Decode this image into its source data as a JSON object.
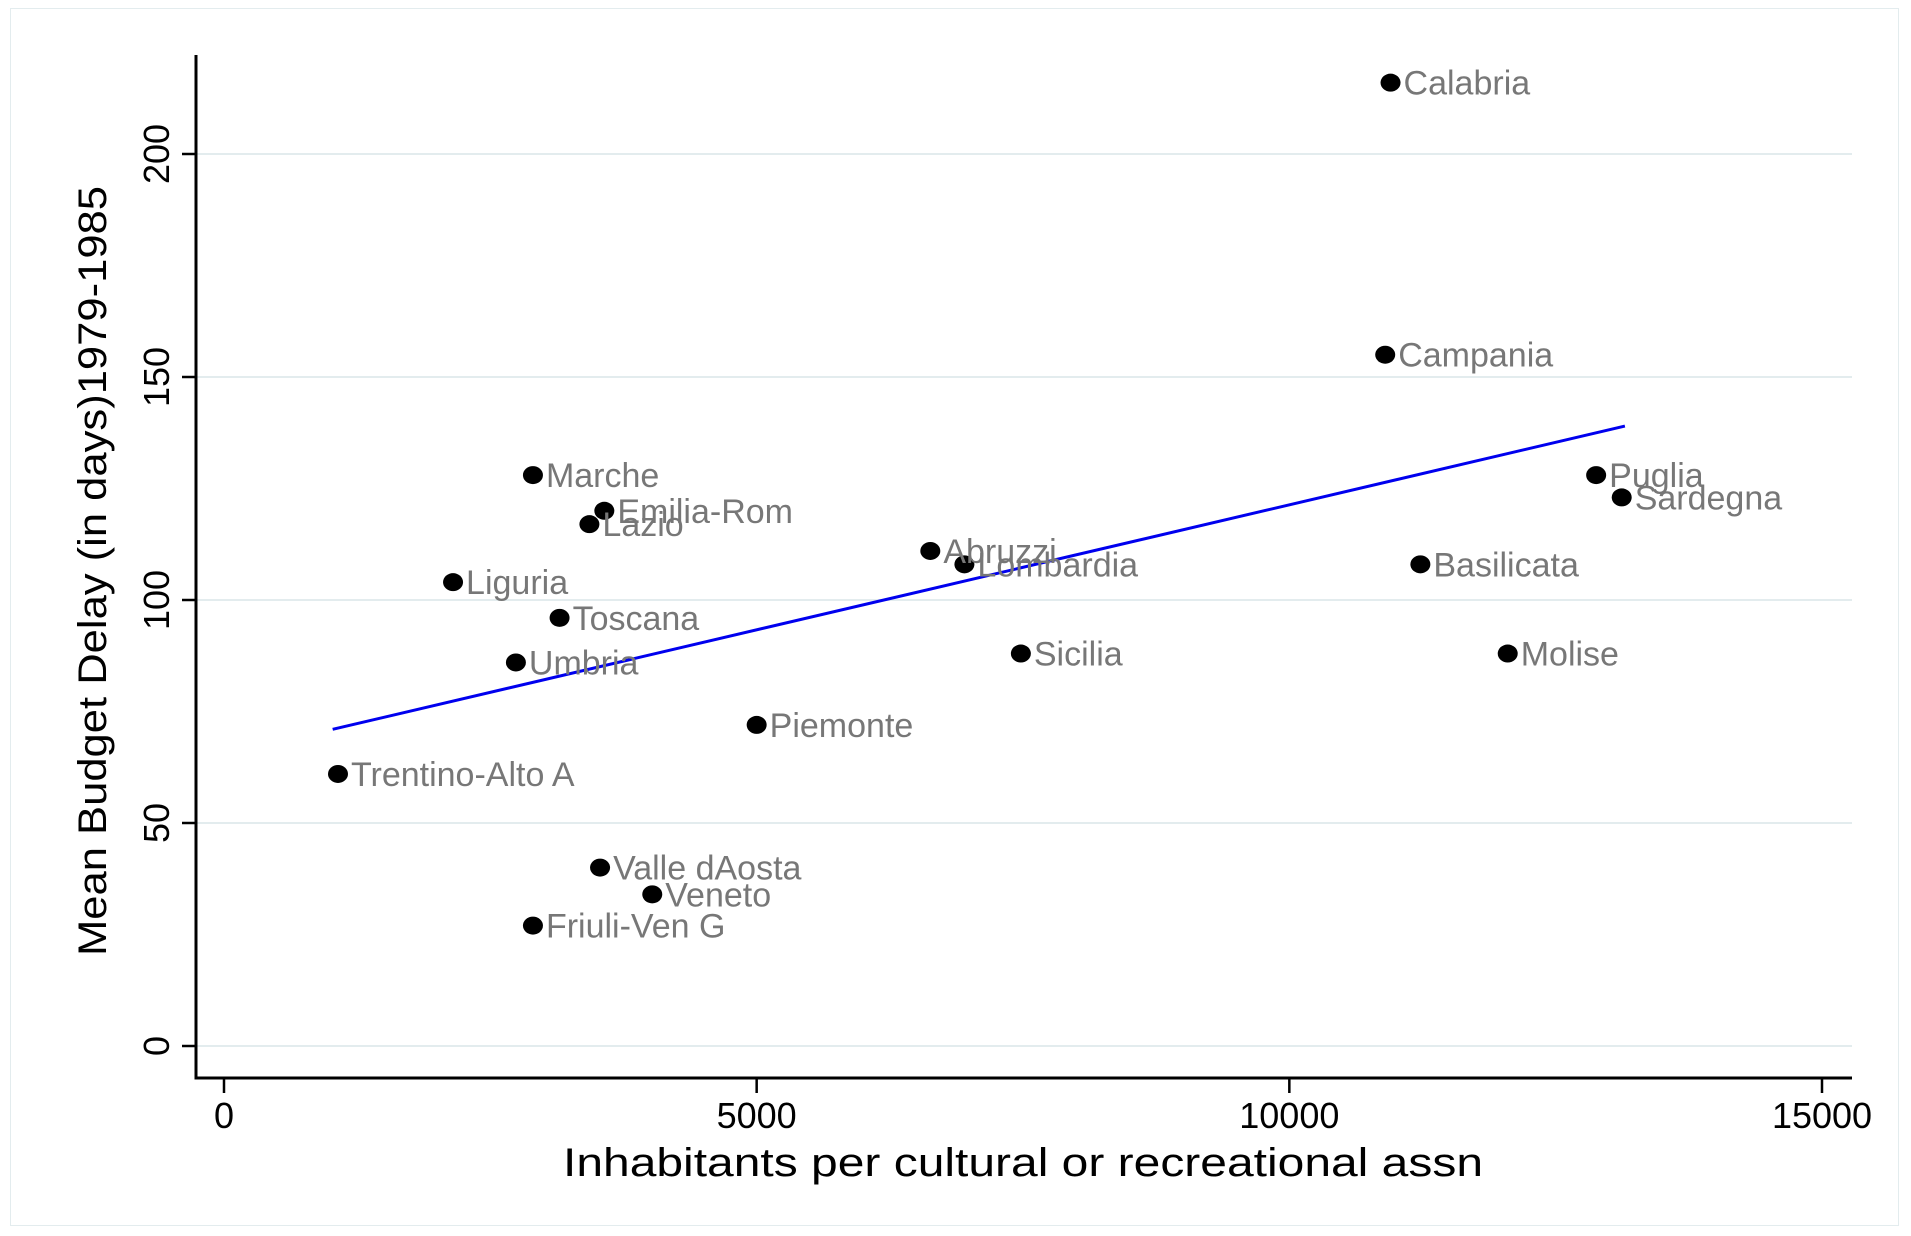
{
  "chart_data": {
    "type": "scatter",
    "title": "",
    "xlabel": "Inhabitants per cultural or recreational assn",
    "ylabel": "Mean Budget Delay (in days)1979-1985",
    "xlim": [
      -300,
      15300
    ],
    "ylim": [
      -8,
      222
    ],
    "x_ticks": [
      0,
      5000,
      10000,
      15000
    ],
    "y_ticks": [
      0,
      50,
      100,
      150,
      200
    ],
    "grid": "horizontal",
    "legend": "none",
    "colors": {
      "points": "#000000",
      "labels": "#777777",
      "fit_line": "#0000ee",
      "grid": "#e3ecee"
    },
    "points": [
      {
        "label": "Calabria",
        "x": 10950,
        "y": 216
      },
      {
        "label": "Campania",
        "x": 10900,
        "y": 155
      },
      {
        "label": "Puglia",
        "x": 12880,
        "y": 128
      },
      {
        "label": "Sardegna",
        "x": 13120,
        "y": 123
      },
      {
        "label": "Basilicata",
        "x": 11230,
        "y": 108
      },
      {
        "label": "Molise",
        "x": 12050,
        "y": 88
      },
      {
        "label": "Marche",
        "x": 2900,
        "y": 128
      },
      {
        "label": "Emilia-Rom",
        "x": 3570,
        "y": 120
      },
      {
        "label": "Lazio",
        "x": 3430,
        "y": 117
      },
      {
        "label": "Liguria",
        "x": 2150,
        "y": 104
      },
      {
        "label": "Toscana",
        "x": 3150,
        "y": 96
      },
      {
        "label": "Umbria",
        "x": 2740,
        "y": 86
      },
      {
        "label": "Abruzzi",
        "x": 6630,
        "y": 111
      },
      {
        "label": "Lombardia",
        "x": 6950,
        "y": 108
      },
      {
        "label": "Sicilia",
        "x": 7480,
        "y": 88
      },
      {
        "label": "Piemonte",
        "x": 5000,
        "y": 72
      },
      {
        "label": "Trentino-Alto A",
        "x": 1070,
        "y": 61
      },
      {
        "label": "Valle dAosta",
        "x": 3530,
        "y": 40
      },
      {
        "label": "Veneto",
        "x": 4020,
        "y": 34
      },
      {
        "label": "Friuli-Ven G",
        "x": 2900,
        "y": 27
      }
    ],
    "fit_line": {
      "x": [
        1020,
        13150
      ],
      "y": [
        71,
        139
      ]
    }
  }
}
